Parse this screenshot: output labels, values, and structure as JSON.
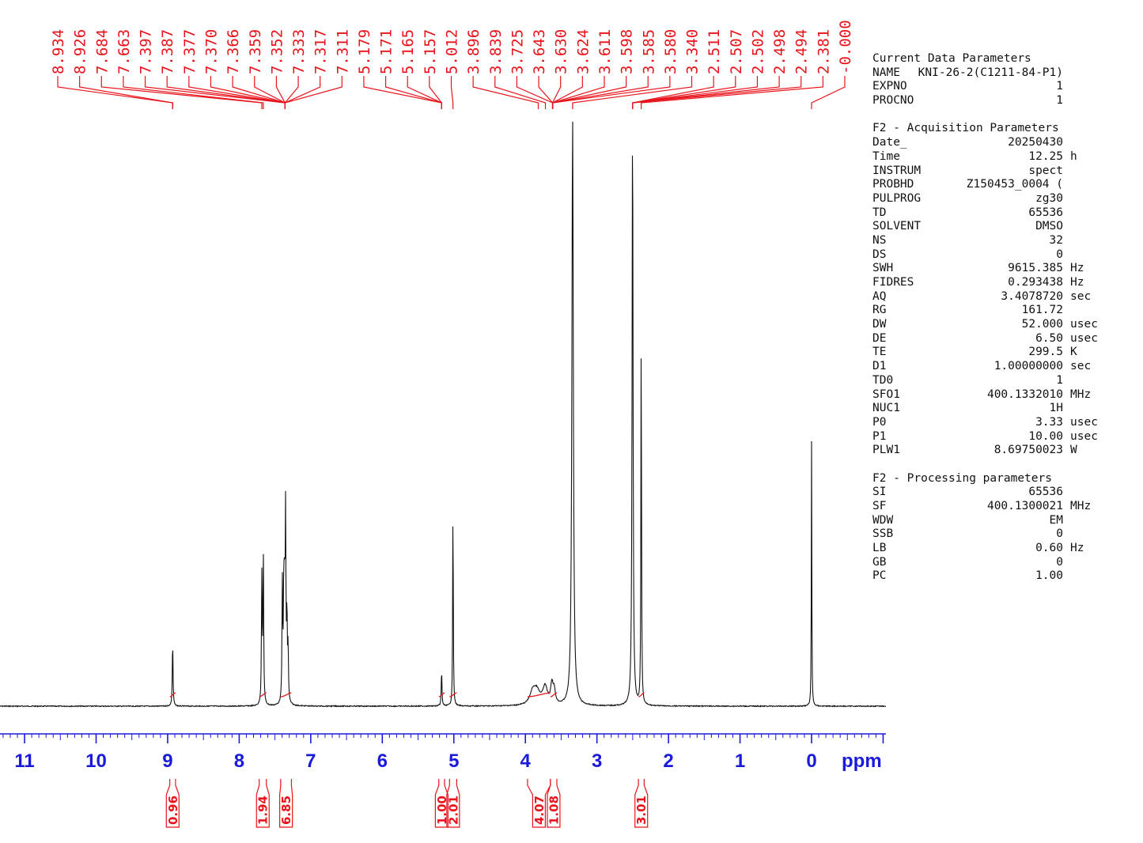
{
  "chart_data": {
    "type": "line",
    "title": "",
    "xlabel": "ppm",
    "ylabel": "",
    "xlim": [
      11.35,
      -1.03
    ],
    "x_axis_reversed": true,
    "x_ticks": [
      "11",
      "10",
      "9",
      "8",
      "7",
      "6",
      "5",
      "4",
      "3",
      "2",
      "1",
      "0"
    ],
    "colors": {
      "spectrum": "#111111",
      "annotation": "#e8141c",
      "axis": "#1a1adb"
    },
    "peaks": [
      {
        "ppm": 8.93,
        "height": 0.11,
        "width": 0.006
      },
      {
        "ppm": 7.684,
        "height": 0.215,
        "width": 0.006
      },
      {
        "ppm": 7.663,
        "height": 0.255,
        "width": 0.006
      },
      {
        "ppm": 7.397,
        "height": 0.2,
        "width": 0.006
      },
      {
        "ppm": 7.377,
        "height": 0.18,
        "width": 0.006
      },
      {
        "ppm": 7.366,
        "height": 0.17,
        "width": 0.006
      },
      {
        "ppm": 7.352,
        "height": 0.31,
        "width": 0.006
      },
      {
        "ppm": 7.333,
        "height": 0.14,
        "width": 0.006
      },
      {
        "ppm": 7.317,
        "height": 0.09,
        "width": 0.006
      },
      {
        "ppm": 5.171,
        "height": 0.06,
        "width": 0.006
      },
      {
        "ppm": 5.012,
        "height": 0.345,
        "width": 0.005
      },
      {
        "ppm": 3.896,
        "height": 0.022,
        "width": 0.05
      },
      {
        "ppm": 3.839,
        "height": 0.02,
        "width": 0.05
      },
      {
        "ppm": 3.725,
        "height": 0.03,
        "width": 0.04
      },
      {
        "ppm": 3.63,
        "height": 0.032,
        "width": 0.02
      },
      {
        "ppm": 3.598,
        "height": 0.022,
        "width": 0.02
      },
      {
        "ppm": 3.34,
        "height": 1.0,
        "width": 0.012
      },
      {
        "ppm": 2.502,
        "height": 1.0,
        "width": 0.008
      },
      {
        "ppm": 2.381,
        "height": 0.64,
        "width": 0.005
      },
      {
        "ppm": 0.0,
        "height": 0.45,
        "width": 0.004
      }
    ],
    "peak_labels": [
      "8.934",
      "8.926",
      "7.684",
      "7.663",
      "7.397",
      "7.387",
      "7.377",
      "7.370",
      "7.366",
      "7.359",
      "7.352",
      "7.333",
      "7.317",
      "7.311",
      "5.179",
      "5.171",
      "5.165",
      "5.157",
      "5.012",
      "3.896",
      "3.839",
      "3.725",
      "3.643",
      "3.630",
      "3.624",
      "3.611",
      "3.598",
      "3.585",
      "3.580",
      "3.340",
      "2.511",
      "2.507",
      "2.502",
      "2.498",
      "2.494",
      "2.381",
      "-0.000"
    ],
    "peak_label_targets": [
      8.93,
      8.93,
      7.684,
      7.663,
      7.36,
      7.36,
      7.36,
      7.36,
      7.36,
      7.36,
      7.36,
      7.36,
      7.36,
      7.36,
      5.17,
      5.17,
      5.17,
      5.17,
      5.012,
      3.82,
      3.72,
      3.62,
      3.62,
      3.62,
      3.62,
      3.62,
      3.62,
      3.62,
      3.62,
      3.34,
      2.5,
      2.5,
      2.5,
      2.5,
      2.5,
      2.381,
      0.0
    ],
    "integrals": [
      {
        "label": "0.96",
        "from": 8.97,
        "to": 8.89
      },
      {
        "label": "1.94",
        "from": 7.72,
        "to": 7.62
      },
      {
        "label": "6.85",
        "from": 7.42,
        "to": 7.27
      },
      {
        "label": "1.00",
        "from": 5.21,
        "to": 5.13
      },
      {
        "label": "2.01",
        "from": 5.06,
        "to": 4.96
      },
      {
        "label": "4.07",
        "from": 3.97,
        "to": 3.65
      },
      {
        "label": "1.08",
        "from": 3.65,
        "to": 3.56
      },
      {
        "label": "3.01",
        "from": 2.42,
        "to": 2.34
      }
    ]
  },
  "parameters": [
    {
      "title": "Current Data Parameters",
      "rows": [
        {
          "key": "NAME",
          "value": "KNI-26-2(C1211-84-P1)",
          "unit": ""
        },
        {
          "key": "EXPNO",
          "value": "1",
          "unit": ""
        },
        {
          "key": "PROCNO",
          "value": "1",
          "unit": ""
        }
      ]
    },
    {
      "title": "F2 - Acquisition Parameters",
      "rows": [
        {
          "key": "Date_",
          "value": "20250430",
          "unit": ""
        },
        {
          "key": "Time",
          "value": "12.25",
          "unit": "h"
        },
        {
          "key": "INSTRUM",
          "value": "spect",
          "unit": ""
        },
        {
          "key": "PROBHD",
          "value": "Z150453_0004 (",
          "unit": ""
        },
        {
          "key": "PULPROG",
          "value": "zg30",
          "unit": ""
        },
        {
          "key": "TD",
          "value": "65536",
          "unit": ""
        },
        {
          "key": "SOLVENT",
          "value": "DMSO",
          "unit": ""
        },
        {
          "key": "NS",
          "value": "32",
          "unit": ""
        },
        {
          "key": "DS",
          "value": "0",
          "unit": ""
        },
        {
          "key": "SWH",
          "value": "9615.385",
          "unit": "Hz"
        },
        {
          "key": "FIDRES",
          "value": "0.293438",
          "unit": "Hz"
        },
        {
          "key": "AQ",
          "value": "3.4078720",
          "unit": "sec"
        },
        {
          "key": "RG",
          "value": "161.72",
          "unit": ""
        },
        {
          "key": "DW",
          "value": "52.000",
          "unit": "usec"
        },
        {
          "key": "DE",
          "value": "6.50",
          "unit": "usec"
        },
        {
          "key": "TE",
          "value": "299.5",
          "unit": "K"
        },
        {
          "key": "D1",
          "value": "1.00000000",
          "unit": "sec"
        },
        {
          "key": "TD0",
          "value": "1",
          "unit": ""
        },
        {
          "key": "SFO1",
          "value": "400.1332010",
          "unit": "MHz"
        },
        {
          "key": "NUC1",
          "value": "1H",
          "unit": ""
        },
        {
          "key": "P0",
          "value": "3.33",
          "unit": "usec"
        },
        {
          "key": "P1",
          "value": "10.00",
          "unit": "usec"
        },
        {
          "key": "PLW1",
          "value": "8.69750023",
          "unit": "W"
        }
      ]
    },
    {
      "title": "F2 - Processing parameters",
      "rows": [
        {
          "key": "SI",
          "value": "65536",
          "unit": ""
        },
        {
          "key": "SF",
          "value": "400.1300021",
          "unit": "MHz"
        },
        {
          "key": "WDW",
          "value": "EM",
          "unit": ""
        },
        {
          "key": "SSB",
          "value": "0",
          "unit": ""
        },
        {
          "key": "LB",
          "value": "0.60",
          "unit": "Hz"
        },
        {
          "key": "GB",
          "value": "0",
          "unit": ""
        },
        {
          "key": "PC",
          "value": "1.00",
          "unit": ""
        }
      ]
    }
  ]
}
